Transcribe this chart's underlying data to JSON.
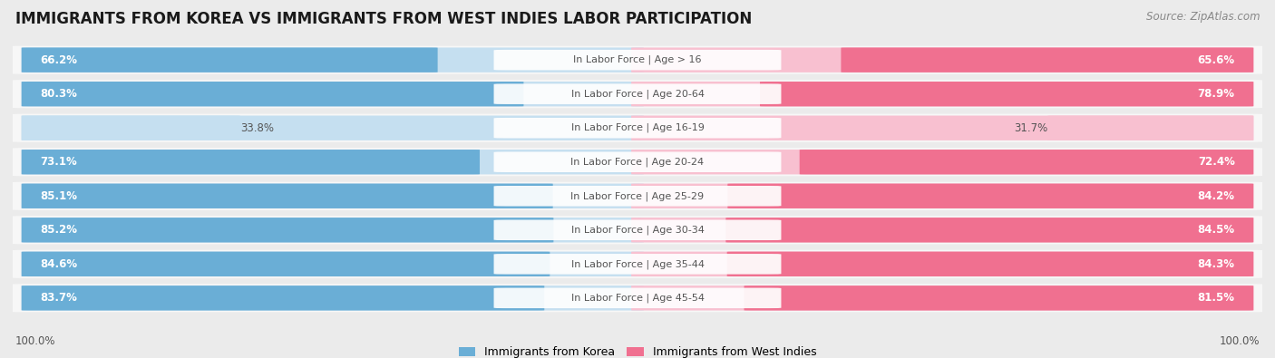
{
  "title": "IMMIGRANTS FROM KOREA VS IMMIGRANTS FROM WEST INDIES LABOR PARTICIPATION",
  "source": "Source: ZipAtlas.com",
  "categories": [
    "In Labor Force | Age > 16",
    "In Labor Force | Age 20-64",
    "In Labor Force | Age 16-19",
    "In Labor Force | Age 20-24",
    "In Labor Force | Age 25-29",
    "In Labor Force | Age 30-34",
    "In Labor Force | Age 35-44",
    "In Labor Force | Age 45-54"
  ],
  "korea_values": [
    66.2,
    80.3,
    33.8,
    73.1,
    85.1,
    85.2,
    84.6,
    83.7
  ],
  "westindies_values": [
    65.6,
    78.9,
    31.7,
    72.4,
    84.2,
    84.5,
    84.3,
    81.5
  ],
  "korea_color": "#6aaed6",
  "westindies_color": "#f07090",
  "korea_color_light": "#c5dff0",
  "westindies_color_light": "#f8c0d0",
  "bg_color": "#ebebeb",
  "row_bg": "#f7f7f7",
  "label_color_dark": "#555555",
  "legend_korea": "Immigrants from Korea",
  "legend_westindies": "Immigrants from West Indies",
  "axis_label_left": "100.0%",
  "axis_label_right": "100.0%",
  "max_value": 100.0,
  "title_fontsize": 12,
  "source_fontsize": 8.5,
  "bar_label_fontsize": 8.5,
  "cat_label_fontsize": 8,
  "legend_fontsize": 9,
  "axis_fontsize": 8.5,
  "small_threshold": 50
}
